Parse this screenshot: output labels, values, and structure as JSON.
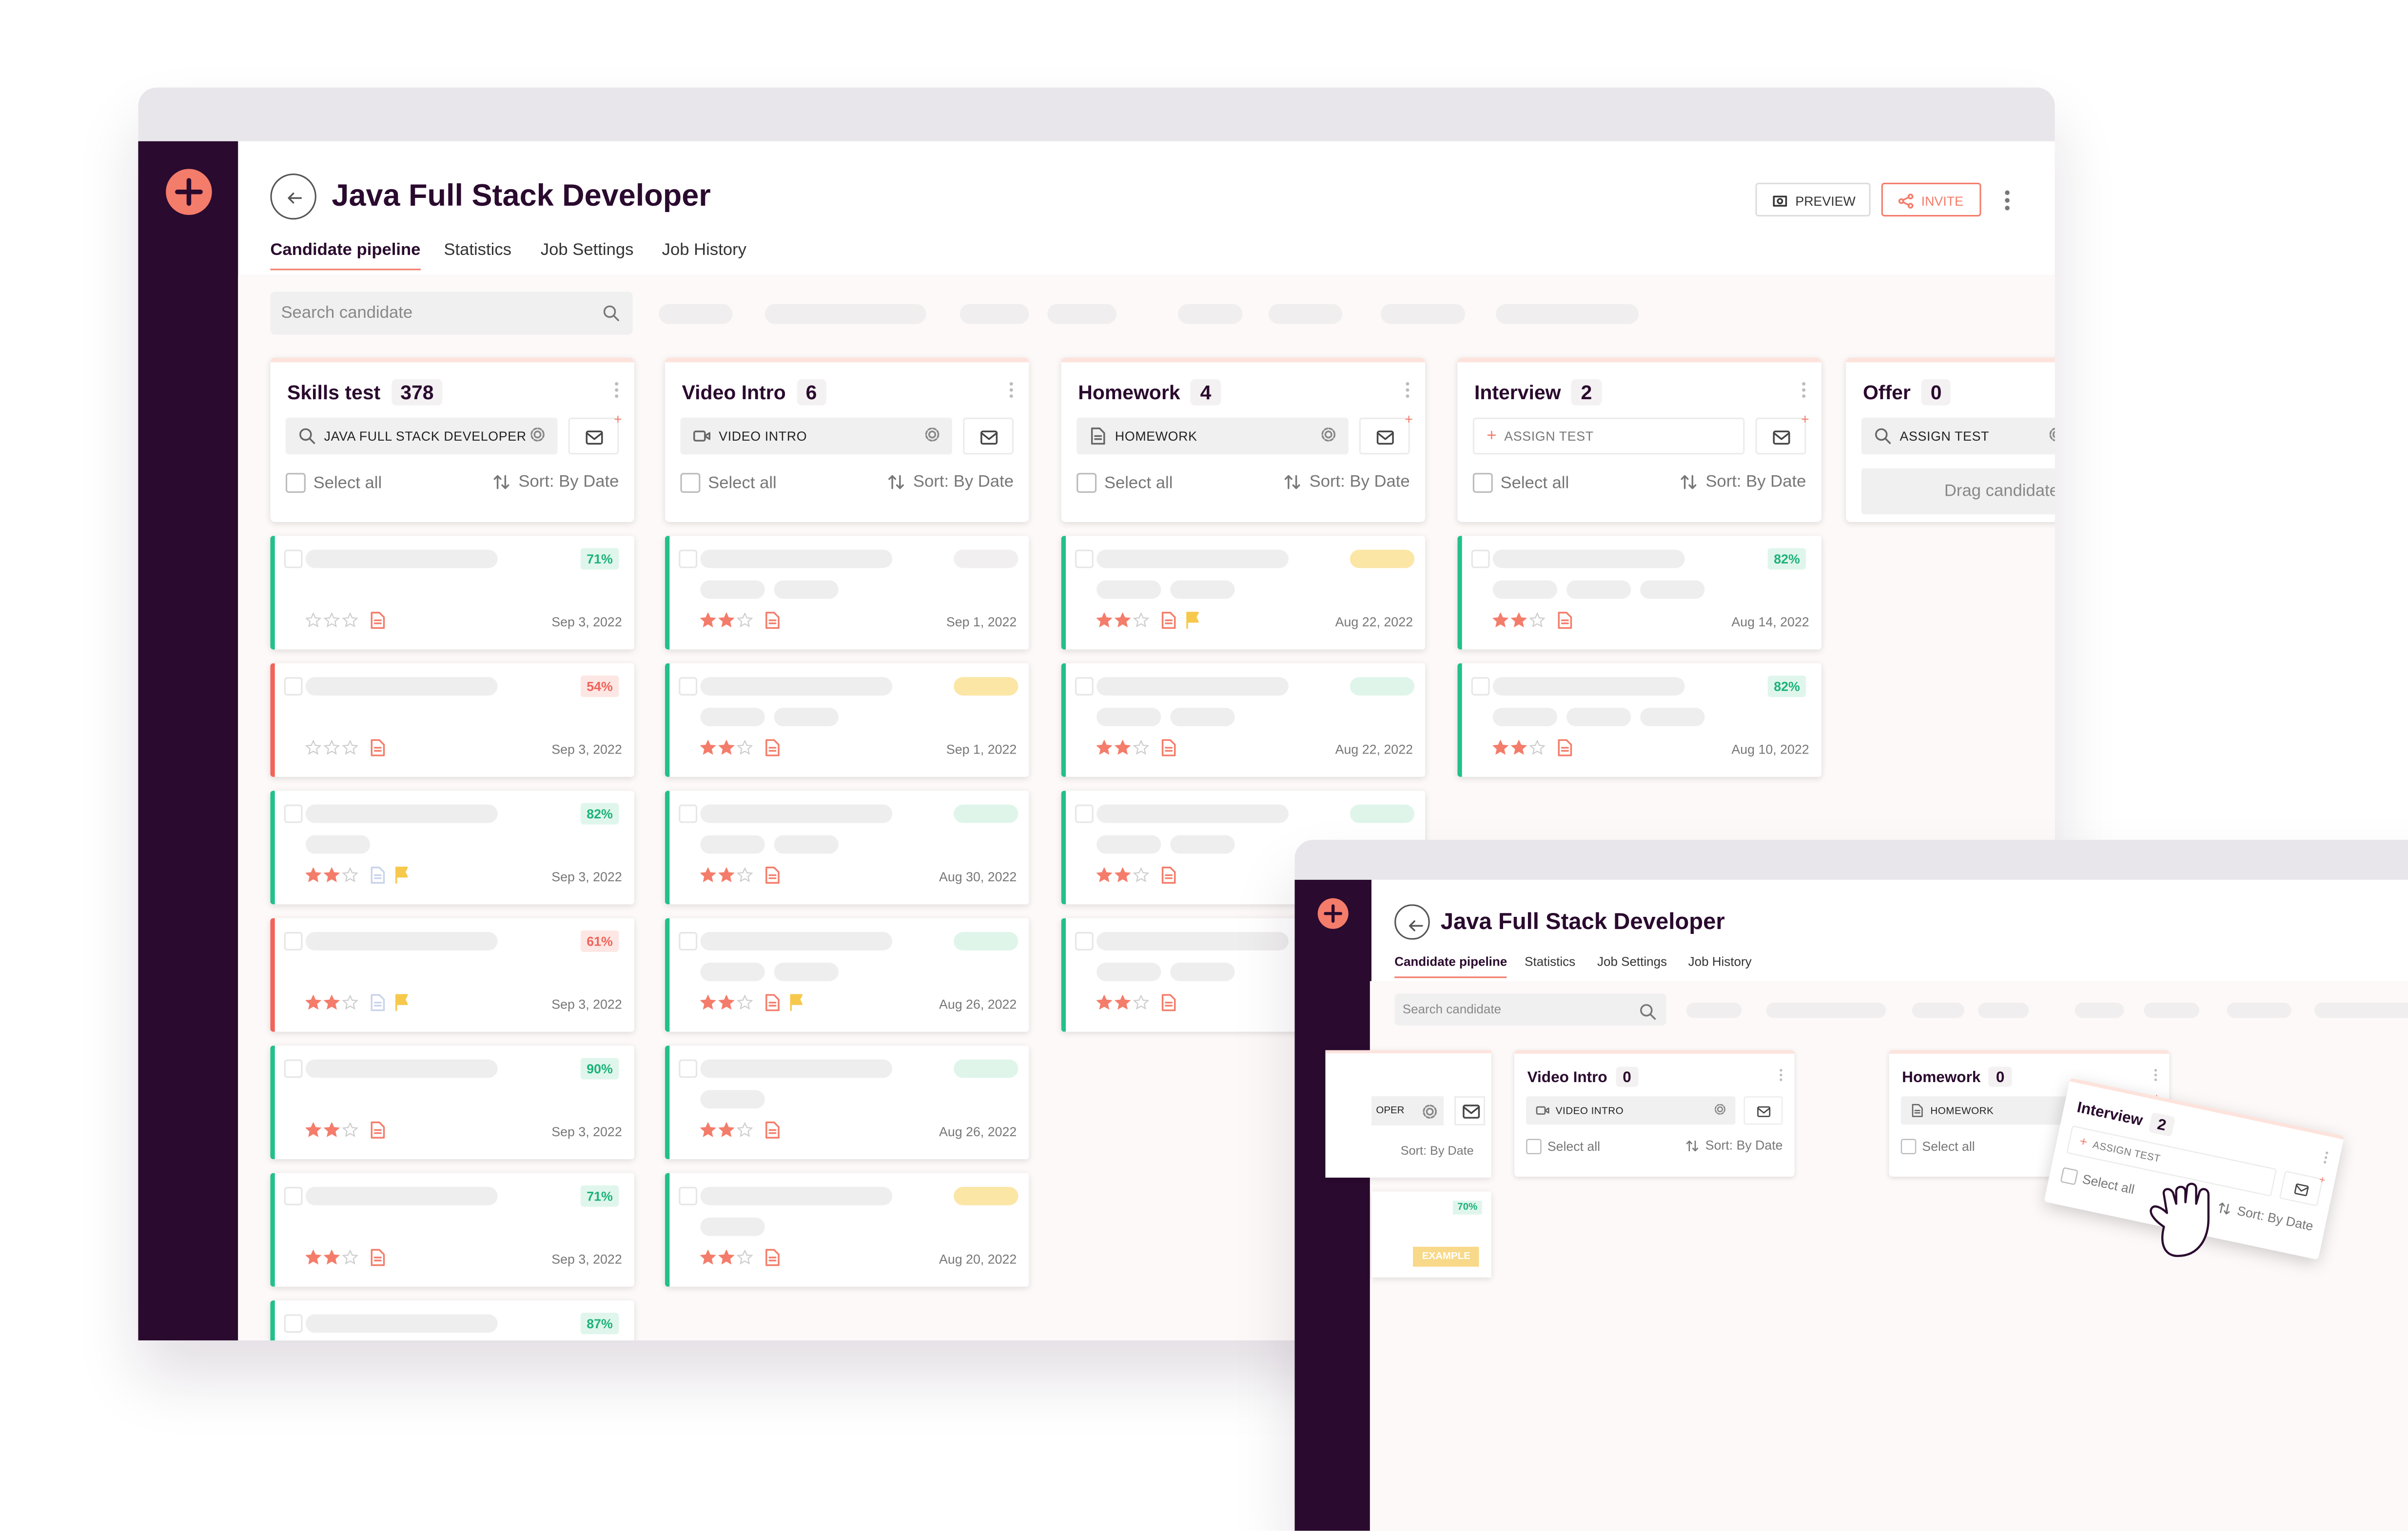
{
  "main": {
    "title": "Java Full Stack Developer",
    "actions": [
      "PREVIEW",
      "INVITE"
    ],
    "tabs": [
      "Candidate pipeline",
      "Statistics",
      "Job Settings",
      "Job History"
    ],
    "search": "Search candidate",
    "columns": [
      {
        "name": "Skills test",
        "count": 378,
        "test": "JAVA FULL STACK DEVELOPER",
        "select_all": "Select all",
        "sort": "Sort: By Date",
        "cards": [
          {
            "score": "71%",
            "stars": 0,
            "date": "Sep 3, 2022"
          },
          {
            "score": "54%",
            "stars": 0,
            "date": "Sep 3, 2022"
          },
          {
            "score": "82%",
            "stars": 2,
            "date": "Sep 3, 2022"
          },
          {
            "score": "61%",
            "stars": 2,
            "date": "Sep 3, 2022"
          },
          {
            "score": "90%",
            "stars": 2,
            "date": "Sep 3, 2022"
          },
          {
            "score": "71%",
            "stars": 2,
            "date": "Sep 3, 2022"
          },
          {
            "score": "87%"
          }
        ]
      },
      {
        "name": "Video Intro",
        "count": 6,
        "test": "VIDEO INTRO",
        "select_all": "Select all",
        "sort": "Sort: By Date",
        "cards": [
          {
            "stars": 2,
            "date": "Sep 1, 2022"
          },
          {
            "stars": 2,
            "date": "Sep 1, 2022"
          },
          {
            "stars": 2,
            "date": "Aug 30, 2022"
          },
          {
            "stars": 2,
            "date": "Aug 26, 2022"
          },
          {
            "stars": 2,
            "date": "Aug 26, 2022"
          },
          {
            "stars": 2,
            "date": "Aug 20, 2022"
          }
        ]
      },
      {
        "name": "Homework",
        "count": 4,
        "test": "HOMEWORK",
        "select_all": "Select all",
        "sort": "Sort: By Date",
        "cards": [
          {
            "stars": 2,
            "date": "Aug 22, 2022"
          },
          {
            "stars": 2,
            "date": "Aug 22, 2022"
          },
          {
            "stars": 2
          },
          {
            "stars": 2
          }
        ]
      },
      {
        "name": "Interview",
        "count": 2,
        "test": "ASSIGN TEST",
        "select_all": "Select all",
        "sort": "Sort: By Date",
        "cards": [
          {
            "score": "82%",
            "stars": 2,
            "date": "Aug 14, 2022"
          },
          {
            "score": "82%",
            "stars": 2,
            "date": "Aug 10, 2022"
          }
        ]
      },
      {
        "name": "Offer",
        "count": 0,
        "test": "ASSIGN TEST",
        "drop": "Drag candidate"
      }
    ]
  },
  "overlay": {
    "title": "Java Full Stack Developer",
    "tabs": [
      "Candidate pipeline",
      "Statistics",
      "Job Settings",
      "Job History"
    ],
    "search": "Search candidate",
    "partial": {
      "test": "OPER",
      "sort": "Sort: By Date",
      "score": "70%",
      "tag": "EXAMPLE"
    },
    "columns": [
      {
        "name": "Video Intro",
        "count": 0,
        "test": "VIDEO INTRO",
        "select_all": "Select all",
        "sort": "Sort: By Date"
      },
      {
        "name": "Homework",
        "count": 0,
        "test": "HOMEWORK",
        "select_all": "Select all"
      }
    ],
    "dragged": {
      "name": "Interview",
      "count": 2,
      "test": "ASSIGN TEST",
      "select_all": "Select all",
      "sort": "Sort: By Date"
    }
  }
}
